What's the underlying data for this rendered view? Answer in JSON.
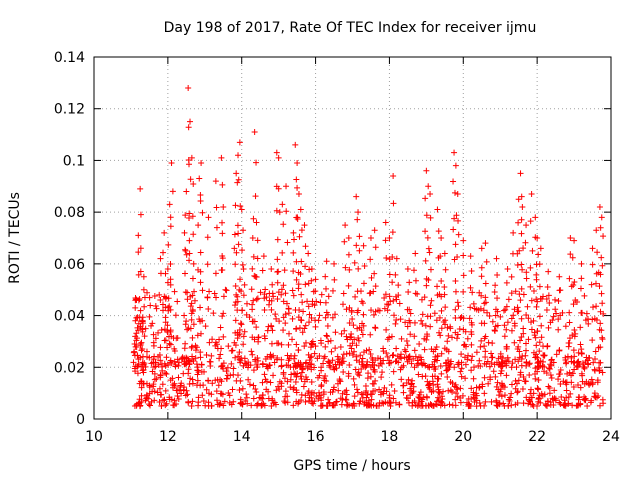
{
  "chart_data": {
    "type": "scatter",
    "title": "Day 198 of 2017, Rate Of TEC Index for receiver ijmu",
    "xlabel": "GPS time / hours",
    "ylabel": "ROTI / TECUs",
    "xlim": [
      10,
      24
    ],
    "ylim": [
      0,
      0.14
    ],
    "xticks": [
      10,
      12,
      14,
      16,
      18,
      20,
      22,
      24
    ],
    "xtick_labels": [
      "10",
      "12",
      "14",
      "16",
      "18",
      "20",
      "22",
      "24"
    ],
    "yticks": [
      0,
      0.02,
      0.04,
      0.06,
      0.08,
      0.1,
      0.12,
      0.14
    ],
    "ytick_labels": [
      "0",
      "0.02",
      "0.04",
      "0.06",
      "0.08",
      "0.1",
      "0.12",
      "0.14"
    ],
    "grid": true,
    "marker": "+",
    "color": "#ff0000",
    "series": [
      {
        "name": "ROTI",
        "points": [
          [
            11.25,
            0.089
          ],
          [
            11.2,
            0.071
          ],
          [
            11.35,
            0.055
          ],
          [
            11.15,
            0.046
          ],
          [
            11.3,
            0.038
          ],
          [
            11.1,
            0.029
          ],
          [
            11.8,
            0.062
          ],
          [
            11.9,
            0.072
          ],
          [
            12.05,
            0.083
          ],
          [
            12.1,
            0.099
          ],
          [
            12.0,
            0.058
          ],
          [
            11.95,
            0.047
          ],
          [
            12.55,
            0.128
          ],
          [
            12.6,
            0.115
          ],
          [
            12.65,
            0.101
          ],
          [
            12.5,
            0.088
          ],
          [
            12.45,
            0.072
          ],
          [
            12.7,
            0.06
          ],
          [
            12.9,
            0.099
          ],
          [
            12.85,
            0.093
          ],
          [
            13.1,
            0.078
          ],
          [
            13.3,
            0.092
          ],
          [
            13.45,
            0.101
          ],
          [
            13.5,
            0.082
          ],
          [
            13.95,
            0.107
          ],
          [
            13.9,
            0.102
          ],
          [
            13.85,
            0.095
          ],
          [
            14.0,
            0.081
          ],
          [
            13.8,
            0.066
          ],
          [
            14.05,
            0.058
          ],
          [
            14.35,
            0.111
          ],
          [
            14.4,
            0.076
          ],
          [
            14.3,
            0.07
          ],
          [
            14.6,
            0.063
          ],
          [
            14.8,
            0.058
          ],
          [
            14.95,
            0.103
          ],
          [
            15.0,
            0.101
          ],
          [
            15.1,
            0.083
          ],
          [
            15.2,
            0.09
          ],
          [
            15.45,
            0.106
          ],
          [
            15.5,
            0.099
          ],
          [
            15.55,
            0.087
          ],
          [
            15.6,
            0.081
          ],
          [
            15.4,
            0.072
          ],
          [
            15.7,
            0.075
          ],
          [
            15.8,
            0.064
          ],
          [
            15.9,
            0.058
          ],
          [
            16.0,
            0.054
          ],
          [
            16.3,
            0.061
          ],
          [
            16.5,
            0.06
          ],
          [
            16.8,
            0.075
          ],
          [
            16.9,
            0.07
          ],
          [
            17.1,
            0.086
          ],
          [
            17.15,
            0.08
          ],
          [
            17.3,
            0.067
          ],
          [
            17.5,
            0.07
          ],
          [
            17.6,
            0.073
          ],
          [
            17.9,
            0.076
          ],
          [
            18.0,
            0.07
          ],
          [
            18.1,
            0.094
          ],
          [
            18.2,
            0.062
          ],
          [
            18.5,
            0.058
          ],
          [
            18.7,
            0.064
          ],
          [
            19.0,
            0.096
          ],
          [
            19.05,
            0.09
          ],
          [
            19.1,
            0.087
          ],
          [
            19.3,
            0.081
          ],
          [
            19.4,
            0.07
          ],
          [
            19.5,
            0.064
          ],
          [
            19.75,
            0.103
          ],
          [
            19.8,
            0.098
          ],
          [
            19.85,
            0.087
          ],
          [
            20.0,
            0.069
          ],
          [
            20.2,
            0.063
          ],
          [
            20.5,
            0.066
          ],
          [
            20.6,
            0.068
          ],
          [
            20.9,
            0.062
          ],
          [
            21.2,
            0.058
          ],
          [
            21.35,
            0.072
          ],
          [
            21.5,
            0.085
          ],
          [
            21.55,
            0.095
          ],
          [
            21.6,
            0.082
          ],
          [
            21.7,
            0.075
          ],
          [
            21.85,
            0.087
          ],
          [
            21.95,
            0.078
          ],
          [
            22.0,
            0.07
          ],
          [
            22.1,
            0.066
          ],
          [
            22.3,
            0.057
          ],
          [
            22.6,
            0.055
          ],
          [
            22.9,
            0.07
          ],
          [
            23.0,
            0.069
          ],
          [
            23.2,
            0.06
          ],
          [
            23.5,
            0.066
          ],
          [
            23.6,
            0.073
          ],
          [
            23.7,
            0.082
          ],
          [
            23.75,
            0.078
          ]
        ],
        "bands": [
          {
            "x_start": 11.1,
            "x_end": 23.8,
            "baseline_low": 0.005,
            "baseline_high": 0.025,
            "density": 900
          },
          {
            "x_start": 11.1,
            "x_end": 23.8,
            "baseline_low": 0.02,
            "baseline_high": 0.05,
            "density": 550
          }
        ]
      }
    ]
  }
}
